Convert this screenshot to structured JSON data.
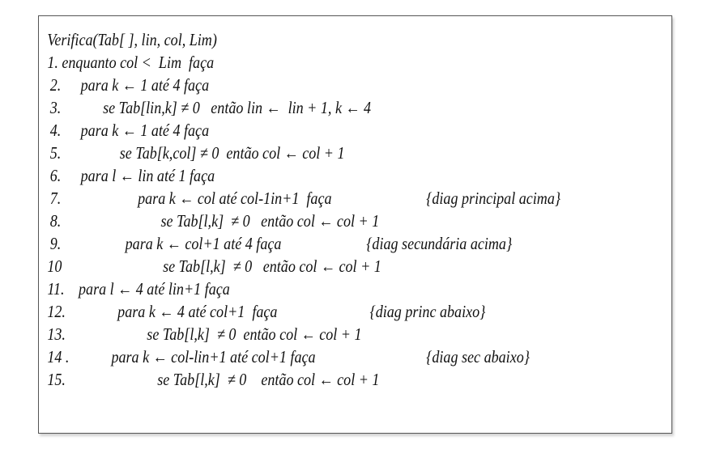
{
  "algorithm": {
    "header": "Verifica(Tab[ ], lin, col, Lim)",
    "lines": [
      {
        "num": "1.",
        "code": "enquanto col <  Lim  faça",
        "comment": ""
      },
      {
        "num": "2.",
        "code": "para k ← 1 até 4 faça",
        "comment": ""
      },
      {
        "num": "3.",
        "code": "se Tab[lin,k] ≠ 0   então lin ←  lin + 1, k ← 4",
        "comment": ""
      },
      {
        "num": "4.",
        "code": "para k ← 1 até 4 faça",
        "comment": ""
      },
      {
        "num": "5.",
        "code": "se Tab[k,col] ≠ 0  então col ← col + 1",
        "comment": ""
      },
      {
        "num": "6.",
        "code": "para l ← lin até 1 faça",
        "comment": ""
      },
      {
        "num": "7.",
        "code": "para k ← col até col-1in+1  faça",
        "comment": "{diag principal acima}"
      },
      {
        "num": "8.",
        "code": "se Tab[l,k]  ≠ 0   então col ← col + 1",
        "comment": ""
      },
      {
        "num": "9.",
        "code": "para k ← col+1 até 4 faça",
        "comment": "{diag secundária acima}"
      },
      {
        "num": "10",
        "code": "se Tab[l,k]  ≠ 0   então col ← col + 1",
        "comment": ""
      },
      {
        "num": "11.",
        "code": "para l ← 4 até lin+1 faça",
        "comment": ""
      },
      {
        "num": "12.",
        "code": "para k ← 4 até col+1  faça",
        "comment": "{diag princ abaixo}"
      },
      {
        "num": "13.",
        "code": "se Tab[l,k]  ≠ 0  então col ← col + 1",
        "comment": ""
      },
      {
        "num": "14 .",
        "code": "para k ← col-lin+1 até col+1 faça",
        "comment": "{diag sec abaixo}"
      },
      {
        "num": "15.",
        "code": "se Tab[l,k]  ≠ 0    então col ← col + 1",
        "comment": ""
      }
    ]
  }
}
